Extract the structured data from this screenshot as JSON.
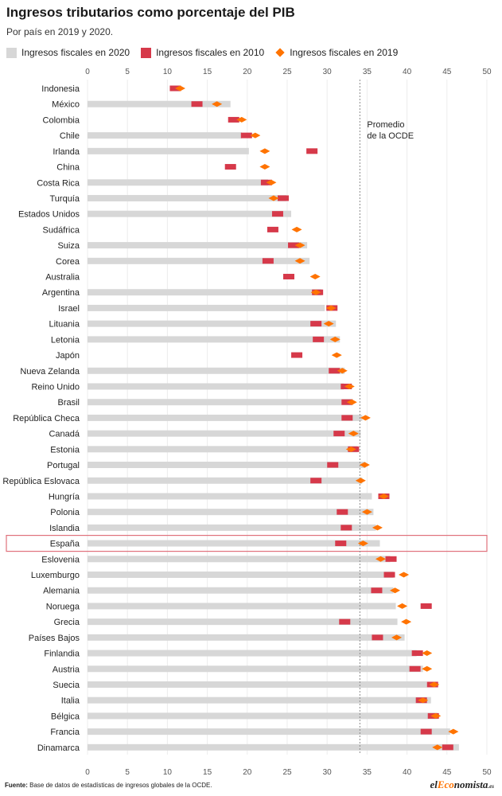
{
  "title": "Ingresos tributarios como porcentaje del PIB",
  "subtitle": "Por país en 2019 y 2020.",
  "legend": [
    {
      "label": "Ingresos fiscales en 2020",
      "color": "#d7d7d7",
      "icon": "gray-bar-swatch"
    },
    {
      "label": "Ingresos fiscales en 2010",
      "color": "#d6394a",
      "icon": "red-rect-swatch"
    },
    {
      "label": "Ingresos fiscales en 2019",
      "color": "#ff7300",
      "icon": "orange-diamond-swatch"
    }
  ],
  "source_label": "Fuente:",
  "source_text": " Base de datos de estadísticas de ingresos globales de la OCDE.",
  "brand": {
    "pre": "el",
    "accent": "Eco",
    "post": "nomista",
    "suffix": ".es"
  },
  "chart_data": {
    "type": "bar",
    "xlim": [
      0,
      50
    ],
    "xticks": [
      "0",
      "5",
      "10",
      "15",
      "20",
      "25",
      "30",
      "35",
      "40",
      "45",
      "50"
    ],
    "grid": true,
    "average": {
      "value": 34.1,
      "label_line1": "Promedio",
      "label_line2": "de la OCDE"
    },
    "highlight": "España",
    "categories": [
      "Indonesia",
      "México",
      "Colombia",
      "Chile",
      "Irlanda",
      "China",
      "Costa Rica",
      "Turquía",
      "Estados Unidos",
      "Sudáfrica",
      "Suiza",
      "Corea",
      "Australia",
      "Argentina",
      "Israel",
      "Lituania",
      "Letonia",
      "Japón",
      "Nueva Zelanda",
      "Reino Unido",
      "Brasil",
      "República Checa",
      "Canadá",
      "Estonia",
      "Portugal",
      "República Eslovaca",
      "Hungría",
      "Polonia",
      "Islandia",
      "España",
      "Eslovenia",
      "Luxemburgo",
      "Alemania",
      "Noruega",
      "Grecia",
      "Países Bajos",
      "Finlandia",
      "Austria",
      "Suecia",
      "Italia",
      "Bélgica",
      "Francia",
      "Dinamarca"
    ],
    "series": [
      {
        "name": "Ingresos fiscales en 2020",
        "values": [
          null,
          17.9,
          null,
          19.3,
          20.2,
          null,
          22.6,
          24.9,
          25.5,
          null,
          27.5,
          27.8,
          null,
          29.3,
          29.7,
          31.1,
          31.6,
          null,
          32.2,
          32.1,
          33.2,
          34.4,
          34.2,
          33.8,
          34.8,
          34.4,
          35.6,
          35.8,
          36.1,
          36.6,
          37.9,
          38.3,
          38.3,
          38.6,
          38.8,
          39.7,
          41.2,
          42.0,
          42.5,
          43.0,
          43.8,
          45.4,
          46.5
        ]
      },
      {
        "name": "Ingresos fiscales en 2010",
        "values": [
          11.0,
          13.7,
          18.3,
          19.9,
          28.1,
          17.9,
          22.4,
          24.5,
          23.8,
          23.2,
          25.8,
          22.6,
          25.2,
          28.8,
          30.6,
          28.6,
          28.9,
          26.2,
          30.9,
          32.4,
          32.5,
          32.5,
          31.5,
          33.3,
          30.7,
          28.6,
          37.1,
          31.9,
          32.4,
          31.7,
          38.0,
          37.8,
          36.2,
          42.4,
          32.2,
          36.3,
          41.3,
          41.0,
          43.2,
          41.8,
          43.3,
          42.4,
          45.1
        ]
      },
      {
        "name": "Ingresos fiscales en 2019",
        "values": [
          11.6,
          16.2,
          19.3,
          21.0,
          22.2,
          22.2,
          23.0,
          23.3,
          null,
          26.2,
          26.6,
          26.6,
          28.5,
          28.6,
          30.5,
          30.2,
          31.0,
          31.2,
          31.9,
          32.8,
          33.1,
          34.8,
          33.3,
          33.0,
          34.7,
          34.2,
          37.1,
          35.0,
          36.3,
          34.5,
          36.7,
          39.6,
          38.5,
          39.4,
          39.9,
          38.7,
          42.5,
          42.5,
          43.4,
          42.0,
          43.6,
          45.8,
          43.8
        ]
      }
    ]
  }
}
